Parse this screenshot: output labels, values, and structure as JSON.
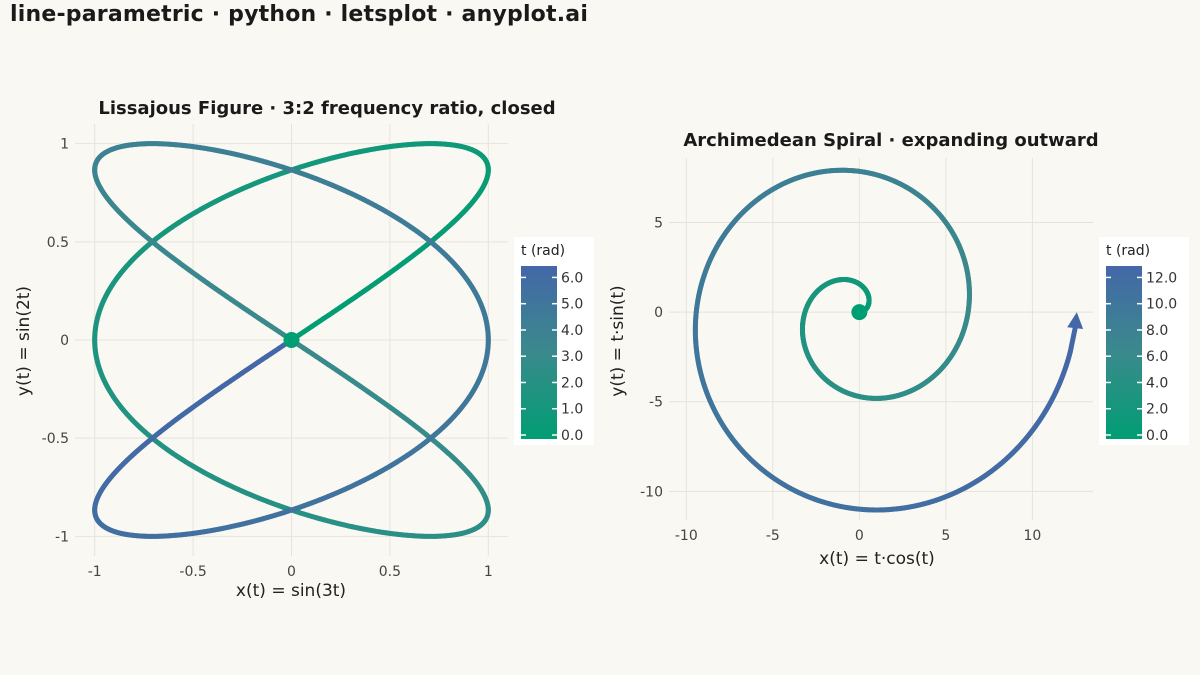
{
  "page": {
    "title": "line-parametric · python · letsplot · anyplot.ai",
    "background": "#FAF8F2"
  },
  "colors": {
    "t_low": "#009E73",
    "t_mid": "#3A8A8C",
    "t_high": "#4467A8",
    "grid": "#E6E3DC"
  },
  "chart_data": [
    {
      "type": "line",
      "subtype": "parametric",
      "title": "Lissajous Figure  ·  3:2 frequency ratio, closed",
      "xlabel": "x(t) = sin(3t)",
      "ylabel": "y(t) = sin(2t)",
      "x_expr": "sin(3t)",
      "y_expr": "sin(2t)",
      "t_range": [
        0,
        6.283
      ],
      "xlim": [
        -1.1,
        1.1
      ],
      "ylim": [
        -1.1,
        1.1
      ],
      "x_ticks": [
        -1,
        -0.5,
        0,
        0.5,
        1
      ],
      "x_tick_labels": [
        "-1",
        "-0.5",
        "0",
        "0.5",
        "1"
      ],
      "y_ticks": [
        -1,
        -0.5,
        0,
        0.5,
        1
      ],
      "y_tick_labels": [
        "-1",
        "-0.5",
        "0",
        "0.5",
        "1"
      ],
      "start_marker": true,
      "end_arrow": false,
      "grid": true,
      "legend": {
        "title": "t (rad)",
        "placement": "right",
        "min": 0,
        "max": 6.283,
        "ticks": [
          0,
          1,
          2,
          3,
          4,
          5,
          6
        ],
        "tick_labels": [
          "0.0",
          "1.0",
          "2.0",
          "3.0",
          "4.0",
          "5.0",
          "6.0"
        ]
      }
    },
    {
      "type": "line",
      "subtype": "parametric",
      "title": "Archimedean Spiral  ·  expanding outward",
      "xlabel": "x(t) = t·cos(t)",
      "ylabel": "y(t) = t·sin(t)",
      "x_expr": "t*cos(t)",
      "y_expr": "t*sin(t)",
      "t_range": [
        0,
        12.566
      ],
      "xlim": [
        -11,
        13.5
      ],
      "ylim": [
        -11.6,
        8.6
      ],
      "x_ticks": [
        -10,
        -5,
        0,
        5,
        10
      ],
      "x_tick_labels": [
        "-10",
        "-5",
        "0",
        "5",
        "10"
      ],
      "y_ticks": [
        -10,
        -5,
        0,
        5
      ],
      "y_tick_labels": [
        "-10",
        "-5",
        "0",
        "5"
      ],
      "start_marker": true,
      "end_arrow": true,
      "grid": true,
      "legend": {
        "title": "t (rad)",
        "placement": "right",
        "min": 0,
        "max": 12.566,
        "ticks": [
          0,
          2,
          4,
          6,
          8,
          10,
          12
        ],
        "tick_labels": [
          "0.0",
          "2.0",
          "4.0",
          "6.0",
          "8.0",
          "10.0",
          "12.0"
        ]
      }
    }
  ]
}
